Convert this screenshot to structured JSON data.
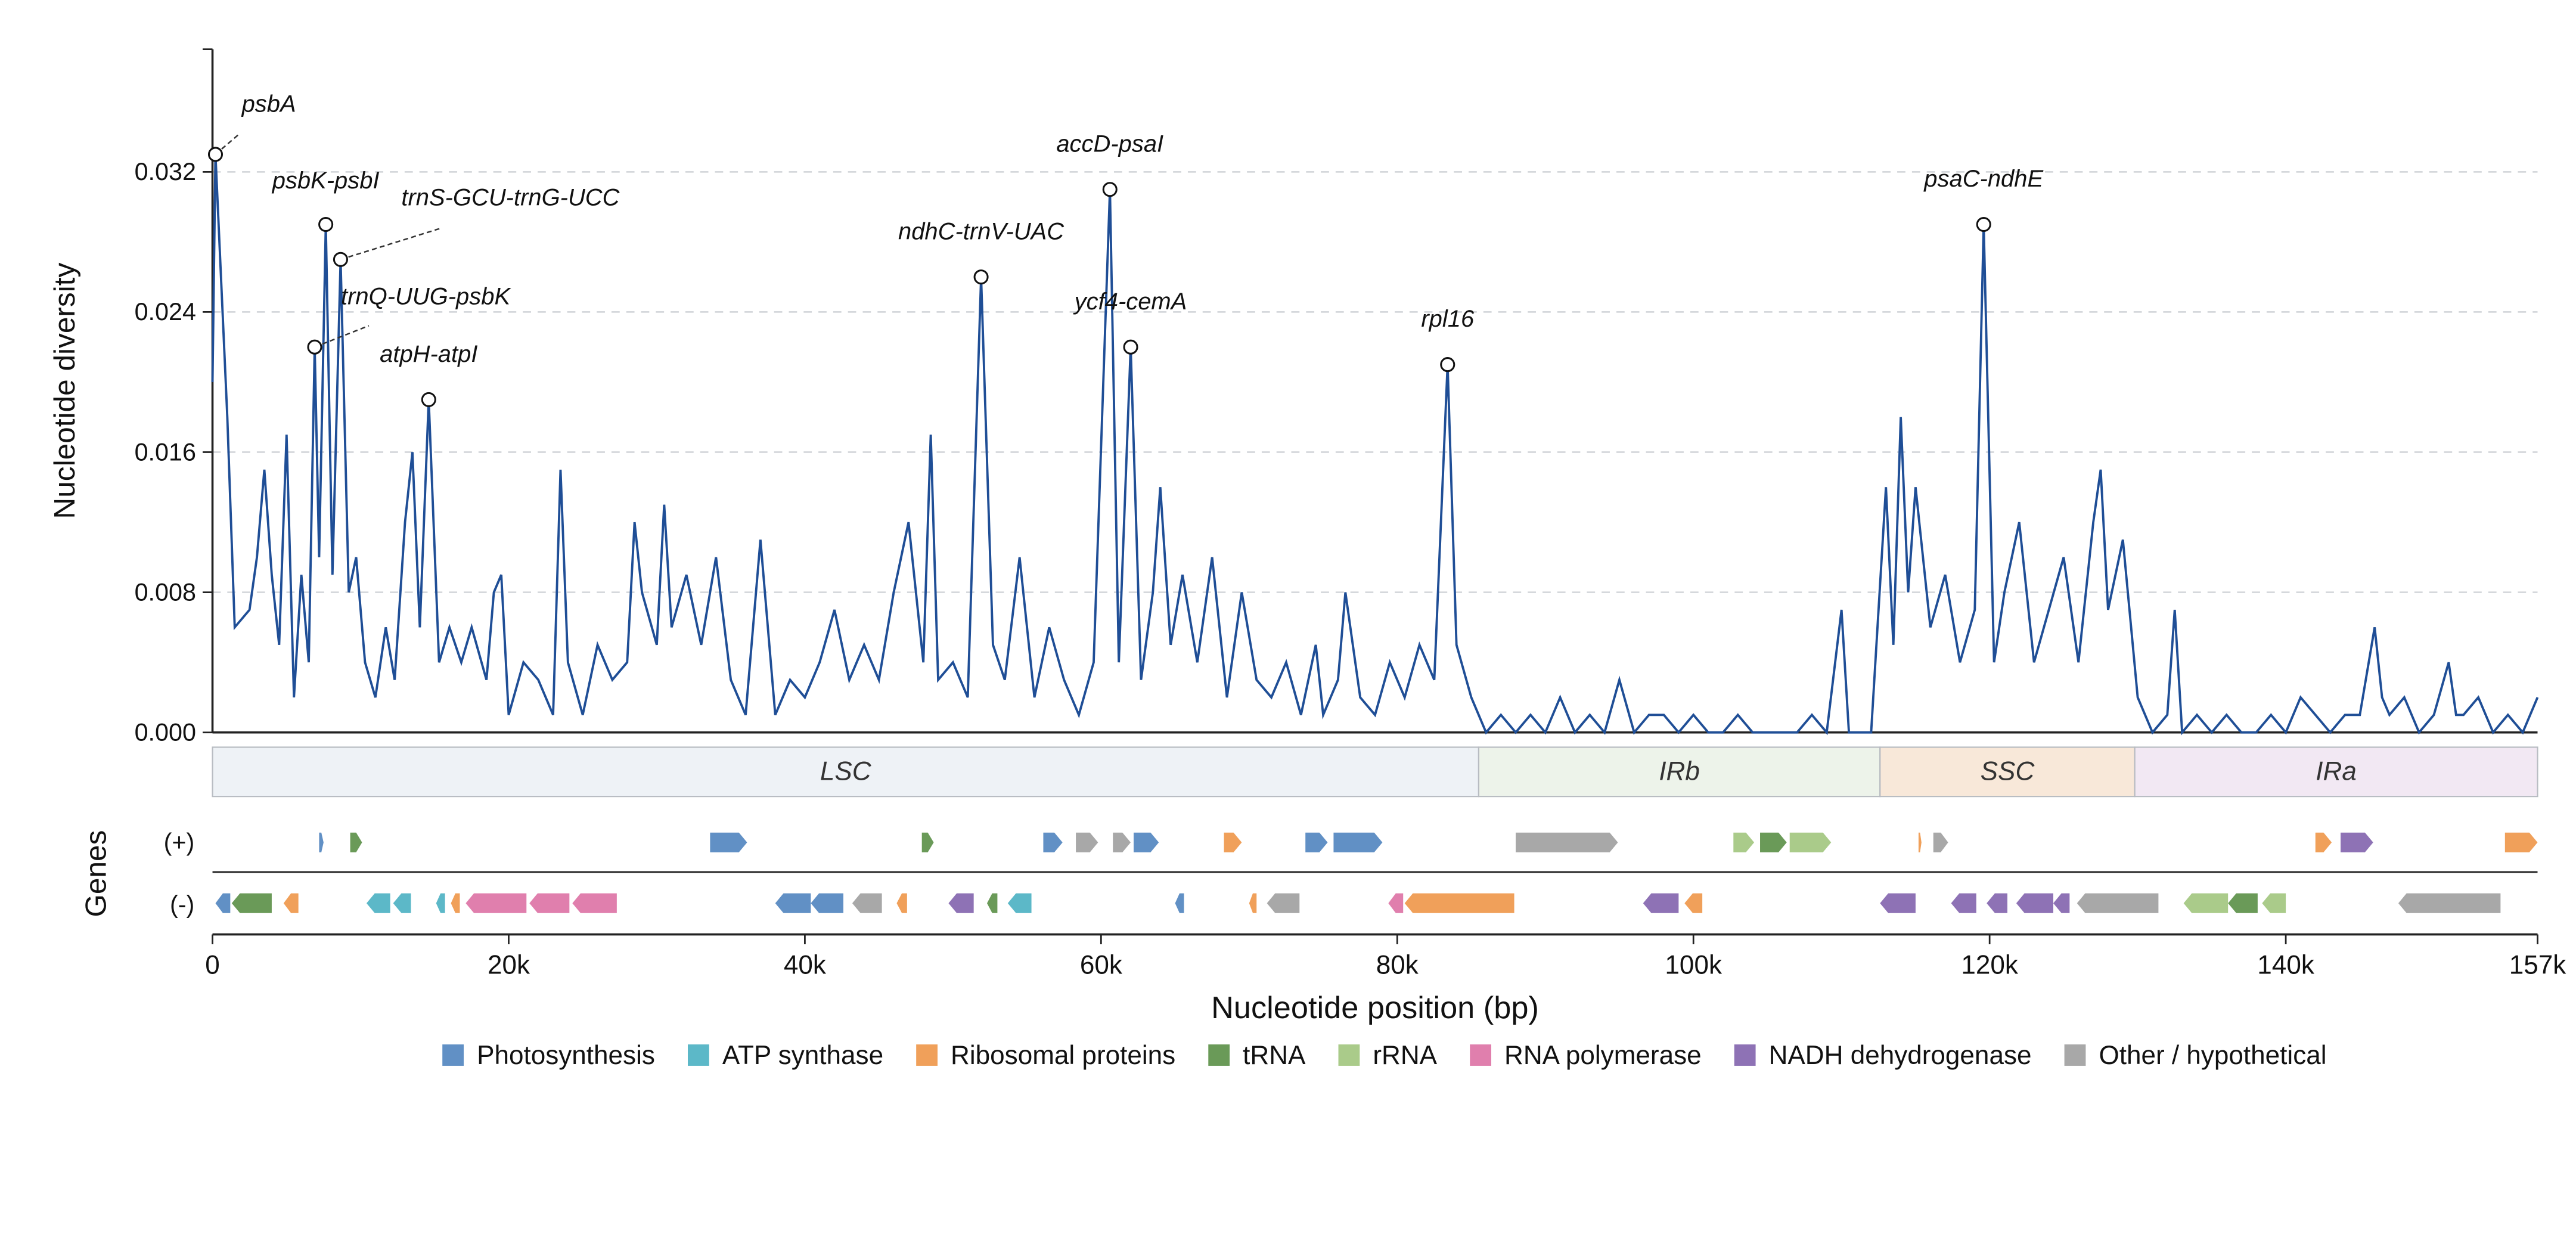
{
  "chart_data": {
    "type": "line",
    "color": "#1f4e96",
    "grid": true,
    "y_label": "Nucleotide diversity",
    "x_label": "Nucleotide position (bp)",
    "xlim": [
      0,
      157000
    ],
    "ylim": [
      0,
      0.039
    ],
    "xticks": [
      0,
      {
        "value": 20000,
        "label": "20k"
      },
      {
        "value": 40000,
        "label": "40k"
      },
      {
        "value": 60000,
        "label": "60k"
      },
      {
        "value": 80000,
        "label": "80k"
      },
      {
        "value": 100000,
        "label": "100k"
      },
      {
        "value": 120000,
        "label": "120k"
      },
      {
        "value": 140000,
        "label": "140k"
      },
      {
        "value": 157000,
        "label": "157k"
      }
    ],
    "yticks": [
      {
        "value": 0,
        "label": "0.000"
      },
      0.008,
      0.016,
      0.024,
      0.032
    ],
    "x": [
      0,
      200,
      1000,
      1500,
      2500,
      3000,
      3500,
      4000,
      4500,
      5000,
      5500,
      6000,
      6500,
      6900,
      7200,
      7650,
      8100,
      8650,
      9200,
      9700,
      10300,
      11000,
      11700,
      12300,
      13000,
      13500,
      14000,
      14600,
      15300,
      16000,
      16800,
      17500,
      18500,
      19000,
      19500,
      20000,
      21000,
      22000,
      23000,
      23500,
      24000,
      25000,
      26000,
      27000,
      28000,
      28500,
      29000,
      30000,
      30500,
      31000,
      32000,
      33000,
      34000,
      35000,
      36000,
      37000,
      38000,
      39000,
      40000,
      41000,
      42000,
      43000,
      44000,
      45000,
      46000,
      47000,
      48000,
      48500,
      49000,
      50000,
      51000,
      51900,
      52700,
      53500,
      54500,
      55500,
      56500,
      57500,
      58500,
      59500,
      60600,
      61200,
      62000,
      62700,
      63500,
      64000,
      64700,
      65500,
      66500,
      67500,
      68500,
      69500,
      70500,
      71500,
      72500,
      73500,
      74500,
      75000,
      76000,
      76500,
      77500,
      78500,
      79500,
      80500,
      81500,
      82500,
      83400,
      84000,
      85000,
      86000,
      87000,
      88000,
      89000,
      90000,
      91000,
      92000,
      93000,
      94000,
      95000,
      96000,
      97000,
      98000,
      99000,
      100000,
      101000,
      102000,
      103000,
      104000,
      105000,
      106000,
      107000,
      108000,
      109000,
      110000,
      110500,
      111000,
      112000,
      113000,
      113500,
      114000,
      114500,
      115000,
      116000,
      117000,
      118000,
      119000,
      119600,
      120300,
      121000,
      122000,
      123000,
      124000,
      125000,
      126000,
      127000,
      127500,
      128000,
      129000,
      130000,
      131000,
      132000,
      132500,
      133000,
      134000,
      135000,
      136000,
      137000,
      138000,
      139000,
      140000,
      141000,
      142000,
      143000,
      144000,
      145000,
      146000,
      146500,
      147000,
      148000,
      149000,
      150000,
      151000,
      151500,
      152000,
      153000,
      154000,
      155000,
      156000,
      157000
    ],
    "values": [
      0.02,
      0.033,
      0.018,
      0.006,
      0.007,
      0.01,
      0.015,
      0.009,
      0.005,
      0.017,
      0.002,
      0.009,
      0.004,
      0.022,
      0.01,
      0.029,
      0.009,
      0.027,
      0.008,
      0.01,
      0.004,
      0.002,
      0.006,
      0.003,
      0.012,
      0.016,
      0.006,
      0.019,
      0.004,
      0.006,
      0.004,
      0.006,
      0.003,
      0.008,
      0.009,
      0.001,
      0.004,
      0.003,
      0.001,
      0.015,
      0.004,
      0.001,
      0.005,
      0.003,
      0.004,
      0.012,
      0.008,
      0.005,
      0.013,
      0.006,
      0.009,
      0.005,
      0.01,
      0.003,
      0.001,
      0.011,
      0.001,
      0.003,
      0.002,
      0.004,
      0.007,
      0.003,
      0.005,
      0.003,
      0.008,
      0.012,
      0.004,
      0.017,
      0.003,
      0.004,
      0.002,
      0.026,
      0.005,
      0.003,
      0.01,
      0.002,
      0.006,
      0.003,
      0.001,
      0.004,
      0.031,
      0.004,
      0.022,
      0.003,
      0.008,
      0.014,
      0.005,
      0.009,
      0.004,
      0.01,
      0.002,
      0.008,
      0.003,
      0.002,
      0.004,
      0.001,
      0.005,
      0.001,
      0.003,
      0.008,
      0.002,
      0.001,
      0.004,
      0.002,
      0.005,
      0.003,
      0.021,
      0.005,
      0.002,
      0.0,
      0.001,
      0.0,
      0.001,
      0.0,
      0.002,
      0.0,
      0.001,
      0.0,
      0.003,
      0.0,
      0.001,
      0.001,
      0.0,
      0.001,
      0.0,
      0.0,
      0.001,
      0.0,
      0.0,
      0.0,
      0.0,
      0.001,
      0.0,
      0.007,
      0.0,
      0.0,
      0.0,
      0.014,
      0.005,
      0.018,
      0.008,
      0.014,
      0.006,
      0.009,
      0.004,
      0.007,
      0.029,
      0.004,
      0.008,
      0.012,
      0.004,
      0.007,
      0.01,
      0.004,
      0.012,
      0.015,
      0.007,
      0.011,
      0.002,
      0.0,
      0.001,
      0.007,
      0.0,
      0.001,
      0.0,
      0.001,
      0.0,
      0.0,
      0.001,
      0.0,
      0.002,
      0.001,
      0.0,
      0.001,
      0.001,
      0.006,
      0.002,
      0.001,
      0.002,
      0.0,
      0.001,
      0.004,
      0.001,
      0.001,
      0.002,
      0.0,
      0.001,
      0.0,
      0.002
    ],
    "annotations": [
      {
        "text": "psbA",
        "x": 200,
        "y": 0.033
      },
      {
        "text": "psbK-psbI",
        "x": 7650,
        "y": 0.029
      },
      {
        "text": "trnS-GCU-trnG-UCC",
        "x": 8650,
        "y": 0.027
      },
      {
        "text": "trnQ-UUG-psbK",
        "x": 6900,
        "y": 0.022
      },
      {
        "text": "atpH-atpI",
        "x": 14600,
        "y": 0.019
      },
      {
        "text": "ndhC-trnV-UAC",
        "x": 51900,
        "y": 0.026
      },
      {
        "text": "accD-psaI",
        "x": 60600,
        "y": 0.031
      },
      {
        "text": "ycf4-cemA",
        "x": 62000,
        "y": 0.022
      },
      {
        "text": "rpl16",
        "x": 83400,
        "y": 0.021
      },
      {
        "text": "psaC-ndhE",
        "x": 119600,
        "y": 0.029
      }
    ],
    "regions": [
      {
        "label": "LSC",
        "start": 0,
        "end": 85500,
        "color": "#eef2f6"
      },
      {
        "label": "IRb",
        "start": 85500,
        "end": 112600,
        "color": "#edf3ea"
      },
      {
        "label": "SSC",
        "start": 112600,
        "end": 129800,
        "color": "#f8e8d9"
      },
      {
        "label": "IRa",
        "start": 129800,
        "end": 157000,
        "color": "#f2e8f3"
      }
    ],
    "genes_label": "Genes",
    "strand_labels": [
      "(+)",
      "(-)"
    ],
    "legend": [
      {
        "name": "Photosynthesis",
        "color": "#6190c5"
      },
      {
        "name": "ATP synthase",
        "color": "#5cb8c8"
      },
      {
        "name": "Ribosomal proteins",
        "color": "#f0a05a"
      },
      {
        "name": "tRNA",
        "color": "#6a9a58"
      },
      {
        "name": "rRNA",
        "color": "#aacb8a"
      },
      {
        "name": "RNA polymerase",
        "color": "#e07fad"
      },
      {
        "name": "NADH dehydrogenase",
        "color": "#8e72b5"
      },
      {
        "name": "Other / hypothetical",
        "color": "#a8a8a8"
      }
    ],
    "genes_plus": [
      {
        "start": 7200,
        "end": 7500,
        "group": "Photosynthesis"
      },
      {
        "start": 9300,
        "end": 10100,
        "group": "tRNA"
      },
      {
        "start": 33600,
        "end": 36100,
        "group": "Photosynthesis"
      },
      {
        "start": 47900,
        "end": 48700,
        "group": "tRNA"
      },
      {
        "start": 56100,
        "end": 57400,
        "group": "Photosynthesis"
      },
      {
        "start": 58300,
        "end": 59800,
        "group": "Other / hypothetical"
      },
      {
        "start": 60800,
        "end": 62000,
        "group": "Other / hypothetical"
      },
      {
        "start": 62200,
        "end": 63900,
        "group": "Photosynthesis"
      },
      {
        "start": 68300,
        "end": 69500,
        "group": "Ribosomal proteins"
      },
      {
        "start": 73800,
        "end": 75300,
        "group": "Photosynthesis"
      },
      {
        "start": 75700,
        "end": 79000,
        "group": "Photosynthesis"
      },
      {
        "start": 88000,
        "end": 94900,
        "group": "Other / hypothetical"
      },
      {
        "start": 102700,
        "end": 104100,
        "group": "rRNA"
      },
      {
        "start": 104500,
        "end": 106300,
        "group": "tRNA"
      },
      {
        "start": 106500,
        "end": 109300,
        "group": "rRNA"
      },
      {
        "start": 115200,
        "end": 115400,
        "group": "Ribosomal proteins"
      },
      {
        "start": 116200,
        "end": 117200,
        "group": "Other / hypothetical"
      },
      {
        "start": 142000,
        "end": 143100,
        "group": "Ribosomal proteins"
      },
      {
        "start": 143700,
        "end": 145900,
        "group": "NADH dehydrogenase"
      },
      {
        "start": 154800,
        "end": 157000,
        "group": "Ribosomal proteins"
      }
    ],
    "genes_minus": [
      {
        "start": 200,
        "end": 1200,
        "group": "Photosynthesis"
      },
      {
        "start": 1300,
        "end": 4000,
        "group": "tRNA"
      },
      {
        "start": 4800,
        "end": 5800,
        "group": "Ribosomal proteins"
      },
      {
        "start": 10400,
        "end": 12000,
        "group": "ATP synthase"
      },
      {
        "start": 12200,
        "end": 13400,
        "group": "ATP synthase"
      },
      {
        "start": 15100,
        "end": 15700,
        "group": "ATP synthase"
      },
      {
        "start": 16100,
        "end": 16700,
        "group": "Ribosomal proteins"
      },
      {
        "start": 17100,
        "end": 21200,
        "group": "RNA polymerase"
      },
      {
        "start": 21400,
        "end": 24100,
        "group": "RNA polymerase"
      },
      {
        "start": 24300,
        "end": 27300,
        "group": "RNA polymerase"
      },
      {
        "start": 38000,
        "end": 40400,
        "group": "Photosynthesis"
      },
      {
        "start": 40400,
        "end": 42600,
        "group": "Photosynthesis"
      },
      {
        "start": 43200,
        "end": 45200,
        "group": "Other / hypothetical"
      },
      {
        "start": 46200,
        "end": 46900,
        "group": "Ribosomal proteins"
      },
      {
        "start": 49700,
        "end": 51400,
        "group": "NADH dehydrogenase"
      },
      {
        "start": 52300,
        "end": 53000,
        "group": "tRNA"
      },
      {
        "start": 53700,
        "end": 55300,
        "group": "ATP synthase"
      },
      {
        "start": 65000,
        "end": 65600,
        "group": "Photosynthesis"
      },
      {
        "start": 70000,
        "end": 70500,
        "group": "Ribosomal proteins"
      },
      {
        "start": 71200,
        "end": 73400,
        "group": "Other / hypothetical"
      },
      {
        "start": 79400,
        "end": 80400,
        "group": "RNA polymerase"
      },
      {
        "start": 80500,
        "end": 87900,
        "group": "Ribosomal proteins"
      },
      {
        "start": 96600,
        "end": 99000,
        "group": "NADH dehydrogenase"
      },
      {
        "start": 99400,
        "end": 100600,
        "group": "Ribosomal proteins"
      },
      {
        "start": 112600,
        "end": 115000,
        "group": "NADH dehydrogenase"
      },
      {
        "start": 117400,
        "end": 119100,
        "group": "NADH dehydrogenase"
      },
      {
        "start": 119800,
        "end": 121200,
        "group": "NADH dehydrogenase"
      },
      {
        "start": 121800,
        "end": 124300,
        "group": "NADH dehydrogenase"
      },
      {
        "start": 124300,
        "end": 125400,
        "group": "NADH dehydrogenase"
      },
      {
        "start": 125900,
        "end": 131400,
        "group": "Other / hypothetical"
      },
      {
        "start": 133100,
        "end": 136100,
        "group": "rRNA"
      },
      {
        "start": 136100,
        "end": 138100,
        "group": "tRNA"
      },
      {
        "start": 138400,
        "end": 140000,
        "group": "rRNA"
      },
      {
        "start": 147600,
        "end": 154500,
        "group": "Other / hypothetical"
      }
    ]
  }
}
